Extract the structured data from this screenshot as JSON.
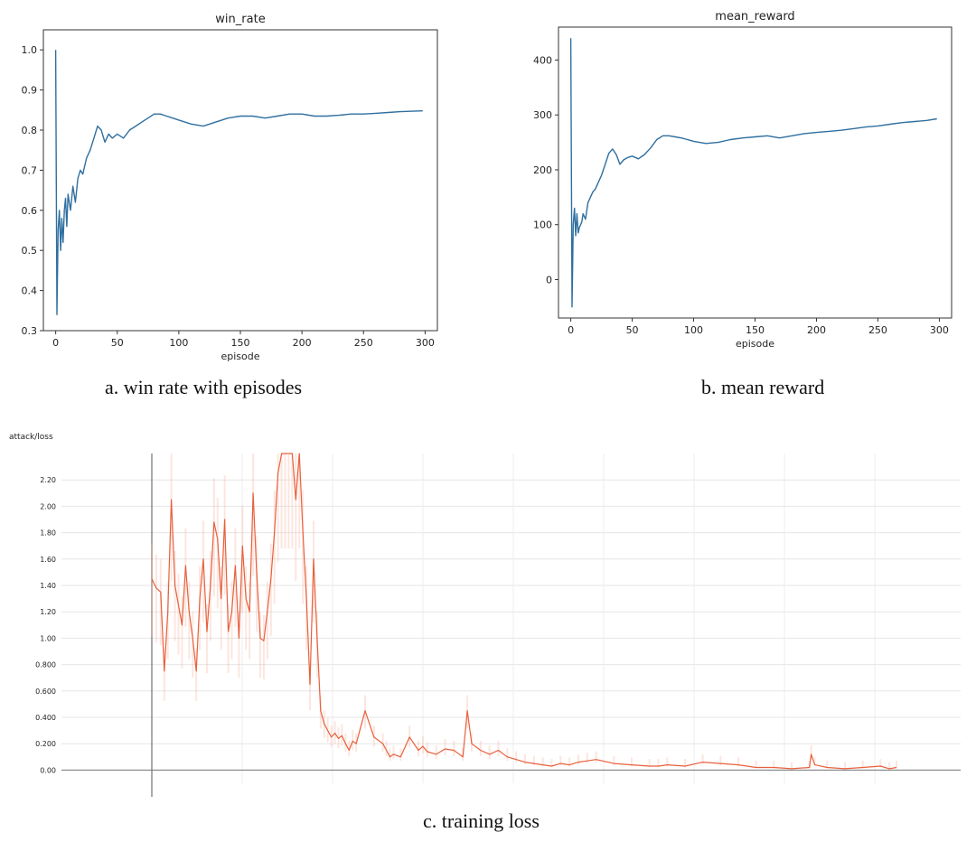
{
  "chart_data": [
    {
      "type": "line",
      "title": "win_rate",
      "xlabel": "episode",
      "ylabel": "",
      "xlim": [
        -10,
        310
      ],
      "ylim": [
        0.3,
        1.05
      ],
      "xticks": [
        "0",
        "50",
        "100",
        "150",
        "200",
        "250",
        "300"
      ],
      "yticks": [
        "0.3",
        "0.4",
        "0.5",
        "0.6",
        "0.7",
        "0.8",
        "0.9",
        "1.0"
      ],
      "color": "#2f6f9f",
      "grid": false,
      "x": [
        0,
        1,
        2,
        3,
        4,
        5,
        6,
        7,
        8,
        9,
        10,
        12,
        14,
        16,
        18,
        20,
        22,
        25,
        28,
        31,
        34,
        37,
        40,
        43,
        46,
        50,
        55,
        60,
        65,
        70,
        75,
        80,
        85,
        90,
        95,
        100,
        110,
        120,
        130,
        140,
        150,
        160,
        170,
        180,
        190,
        200,
        210,
        220,
        230,
        240,
        250,
        260,
        270,
        280,
        290,
        298
      ],
      "y": [
        1.0,
        0.34,
        0.55,
        0.6,
        0.5,
        0.58,
        0.52,
        0.6,
        0.63,
        0.56,
        0.64,
        0.6,
        0.66,
        0.62,
        0.68,
        0.7,
        0.69,
        0.73,
        0.75,
        0.78,
        0.81,
        0.8,
        0.77,
        0.79,
        0.78,
        0.79,
        0.78,
        0.8,
        0.81,
        0.82,
        0.83,
        0.84,
        0.84,
        0.835,
        0.83,
        0.825,
        0.815,
        0.81,
        0.82,
        0.83,
        0.835,
        0.835,
        0.83,
        0.835,
        0.84,
        0.84,
        0.835,
        0.835,
        0.837,
        0.84,
        0.84,
        0.842,
        0.844,
        0.846,
        0.847,
        0.848
      ]
    },
    {
      "type": "line",
      "title": "mean_reward",
      "xlabel": "episode",
      "ylabel": "",
      "xlim": [
        -10,
        310
      ],
      "ylim": [
        -70,
        460
      ],
      "xticks": [
        "0",
        "50",
        "100",
        "150",
        "200",
        "250",
        "300"
      ],
      "yticks": [
        "0",
        "100",
        "200",
        "300",
        "400"
      ],
      "color": "#2f6f9f",
      "grid": false,
      "x": [
        0,
        1,
        2,
        3,
        4,
        5,
        6,
        7,
        8,
        9,
        10,
        12,
        14,
        16,
        18,
        20,
        22,
        25,
        28,
        31,
        34,
        37,
        40,
        43,
        46,
        50,
        55,
        60,
        65,
        70,
        75,
        80,
        85,
        90,
        95,
        100,
        110,
        120,
        130,
        140,
        150,
        160,
        170,
        180,
        190,
        200,
        210,
        220,
        230,
        240,
        250,
        260,
        270,
        280,
        290,
        298
      ],
      "y": [
        440,
        -50,
        100,
        130,
        80,
        120,
        85,
        95,
        100,
        105,
        120,
        110,
        140,
        150,
        160,
        165,
        175,
        190,
        210,
        230,
        238,
        228,
        210,
        218,
        222,
        225,
        220,
        228,
        240,
        255,
        262,
        262,
        260,
        258,
        255,
        252,
        248,
        250,
        255,
        258,
        260,
        262,
        258,
        262,
        266,
        268,
        270,
        272,
        275,
        278,
        280,
        283,
        286,
        288,
        290,
        293
      ]
    },
    {
      "type": "line",
      "title": "attack/loss",
      "xlabel": "",
      "ylabel": "",
      "xlim": [
        0,
        900
      ],
      "ylim": [
        -0.1,
        2.4
      ],
      "yticks": [
        "0.00",
        "0.200",
        "0.400",
        "0.600",
        "0.800",
        "1.00",
        "1.20",
        "1.40",
        "1.60",
        "1.80",
        "2.00",
        "2.20"
      ],
      "color": "#e8603c",
      "grid": true,
      "x": [
        0,
        5,
        10,
        14,
        18,
        22,
        26,
        30,
        34,
        38,
        42,
        46,
        50,
        54,
        58,
        62,
        66,
        70,
        74,
        78,
        82,
        86,
        90,
        94,
        98,
        102,
        106,
        110,
        114,
        118,
        122,
        126,
        130,
        134,
        138,
        142,
        146,
        150,
        154,
        158,
        162,
        166,
        170,
        174,
        178,
        182,
        186,
        190,
        194,
        198,
        202,
        206,
        210,
        214,
        218,
        222,
        226,
        230,
        240,
        250,
        260,
        264,
        268,
        272,
        280,
        290,
        300,
        305,
        310,
        320,
        330,
        340,
        350,
        355,
        360,
        370,
        380,
        390,
        400,
        410,
        420,
        430,
        440,
        450,
        460,
        470,
        480,
        490,
        500,
        520,
        540,
        560,
        570,
        580,
        600,
        620,
        640,
        660,
        680,
        700,
        720,
        740,
        742,
        746,
        760,
        780,
        800,
        820,
        830,
        838
      ],
      "y": [
        1.45,
        1.38,
        1.35,
        0.75,
        1.2,
        2.05,
        1.4,
        1.25,
        1.1,
        1.55,
        1.2,
        1.0,
        0.75,
        1.3,
        1.6,
        1.05,
        1.4,
        1.88,
        1.75,
        1.3,
        1.9,
        1.05,
        1.2,
        1.55,
        1.0,
        1.7,
        1.3,
        1.2,
        2.1,
        1.5,
        1.0,
        0.98,
        1.2,
        1.45,
        1.8,
        2.25,
        2.4,
        2.4,
        2.4,
        2.4,
        2.05,
        2.4,
        1.8,
        1.3,
        0.65,
        1.6,
        1.0,
        0.45,
        0.35,
        0.3,
        0.25,
        0.28,
        0.24,
        0.26,
        0.2,
        0.15,
        0.22,
        0.2,
        0.45,
        0.25,
        0.2,
        0.15,
        0.1,
        0.12,
        0.1,
        0.25,
        0.15,
        0.18,
        0.14,
        0.12,
        0.16,
        0.15,
        0.1,
        0.45,
        0.2,
        0.15,
        0.12,
        0.15,
        0.1,
        0.08,
        0.06,
        0.05,
        0.04,
        0.03,
        0.05,
        0.04,
        0.06,
        0.07,
        0.08,
        0.05,
        0.04,
        0.03,
        0.03,
        0.04,
        0.03,
        0.06,
        0.05,
        0.04,
        0.02,
        0.02,
        0.01,
        0.02,
        0.12,
        0.04,
        0.02,
        0.01,
        0.02,
        0.03,
        0.01,
        0.02
      ]
    }
  ],
  "captions": {
    "a": "a. win rate with episodes",
    "b": "b. mean reward",
    "c": "c. training loss"
  }
}
